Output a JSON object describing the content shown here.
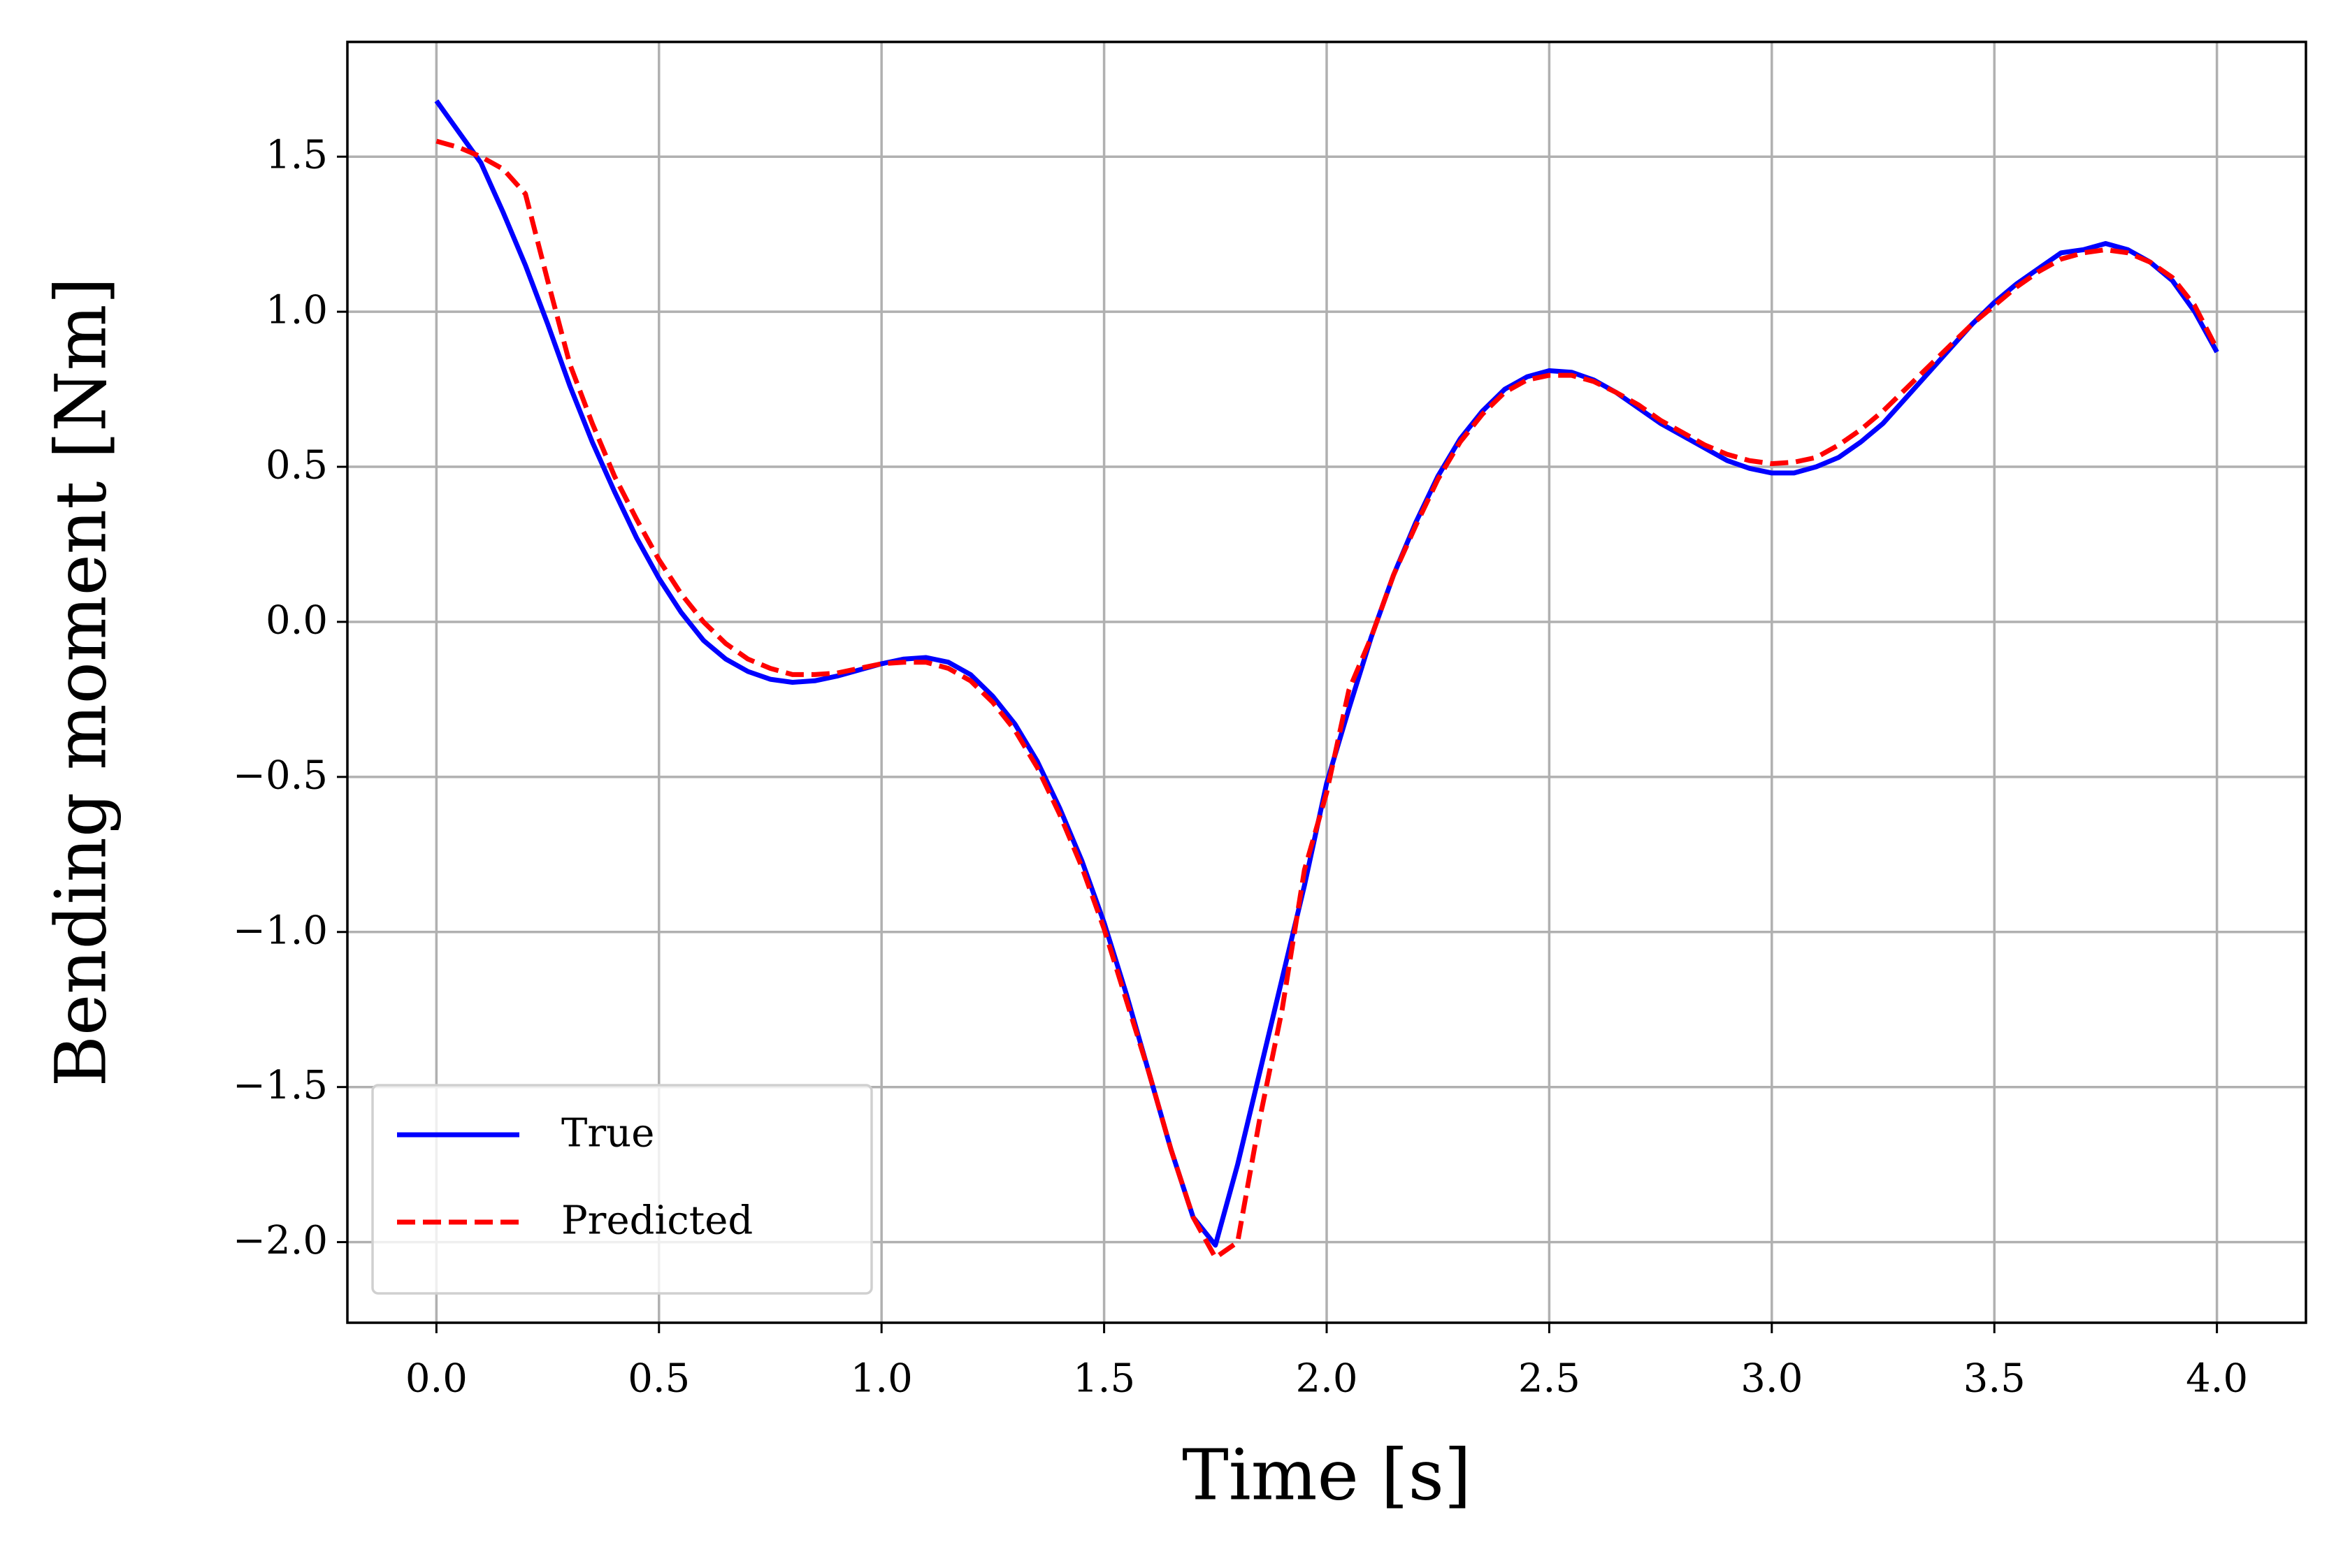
{
  "chart_data": {
    "type": "line",
    "xlabel": "Time [s]",
    "ylabel": "Bending moment [Nm]",
    "x": [
      0,
      0.05,
      0.1,
      0.15,
      0.2,
      0.25,
      0.3,
      0.35,
      0.4,
      0.45,
      0.5,
      0.55,
      0.6,
      0.65,
      0.7,
      0.75,
      0.8,
      0.85,
      0.9,
      0.95,
      1,
      1.05,
      1.1,
      1.15,
      1.2,
      1.25,
      1.3,
      1.35,
      1.4,
      1.45,
      1.5,
      1.55,
      1.6,
      1.65,
      1.7,
      1.75,
      1.8,
      1.85,
      1.9,
      1.95,
      2,
      2.05,
      2.1,
      2.15,
      2.2,
      2.25,
      2.3,
      2.35,
      2.4,
      2.45,
      2.5,
      2.55,
      2.6,
      2.65,
      2.7,
      2.75,
      2.8,
      2.85,
      2.9,
      2.95,
      3,
      3.05,
      3.1,
      3.15,
      3.2,
      3.25,
      3.3,
      3.35,
      3.4,
      3.45,
      3.5,
      3.55,
      3.6,
      3.65,
      3.7,
      3.75,
      3.8,
      3.85,
      3.9,
      3.95,
      4
    ],
    "series": [
      {
        "name": "True",
        "color": "#0000ff",
        "dash": false,
        "values": [
          1.68,
          1.58,
          1.48,
          1.32,
          1.15,
          0.96,
          0.76,
          0.58,
          0.42,
          0.27,
          0.14,
          0.03,
          -0.06,
          -0.12,
          -0.16,
          -0.185,
          -0.195,
          -0.19,
          -0.175,
          -0.155,
          -0.135,
          -0.12,
          -0.115,
          -0.13,
          -0.17,
          -0.24,
          -0.33,
          -0.45,
          -0.6,
          -0.77,
          -0.97,
          -1.2,
          -1.45,
          -1.7,
          -1.92,
          -2.01,
          -1.75,
          -1.45,
          -1.15,
          -0.85,
          -0.52,
          -0.28,
          -0.05,
          0.15,
          0.32,
          0.47,
          0.59,
          0.68,
          0.75,
          0.79,
          0.81,
          0.805,
          0.78,
          0.74,
          0.69,
          0.64,
          0.6,
          0.56,
          0.52,
          0.495,
          0.48,
          0.48,
          0.5,
          0.53,
          0.58,
          0.64,
          0.72,
          0.8,
          0.88,
          0.96,
          1.03,
          1.09,
          1.14,
          1.19,
          1.2,
          1.22,
          1.2,
          1.16,
          1.1,
          1.0,
          0.87
        ]
      },
      {
        "name": "Predicted",
        "color": "#ff0000",
        "dash": true,
        "values": [
          1.55,
          1.53,
          1.5,
          1.46,
          1.38,
          1.1,
          0.83,
          0.64,
          0.47,
          0.33,
          0.2,
          0.09,
          0.0,
          -0.07,
          -0.12,
          -0.15,
          -0.17,
          -0.17,
          -0.165,
          -0.15,
          -0.135,
          -0.13,
          -0.13,
          -0.15,
          -0.19,
          -0.26,
          -0.35,
          -0.47,
          -0.62,
          -0.79,
          -0.99,
          -1.22,
          -1.45,
          -1.7,
          -1.92,
          -2.05,
          -2.0,
          -1.6,
          -1.25,
          -0.8,
          -0.55,
          -0.22,
          -0.05,
          0.15,
          0.31,
          0.46,
          0.58,
          0.67,
          0.74,
          0.78,
          0.795,
          0.795,
          0.775,
          0.74,
          0.7,
          0.65,
          0.61,
          0.57,
          0.54,
          0.52,
          0.51,
          0.515,
          0.53,
          0.57,
          0.62,
          0.68,
          0.75,
          0.82,
          0.89,
          0.96,
          1.02,
          1.08,
          1.13,
          1.17,
          1.19,
          1.2,
          1.19,
          1.16,
          1.11,
          1.02,
          0.88
        ]
      }
    ],
    "xlim": [
      -0.2,
      4.2
    ],
    "ylim": [
      -2.26,
      1.87
    ],
    "xticks": [
      {
        "value": 0,
        "label": "0.0"
      },
      0.5,
      {
        "value": 1,
        "label": "1.0"
      },
      1.5,
      {
        "value": 2,
        "label": "2.0"
      },
      2.5,
      {
        "value": 3,
        "label": "3.0"
      },
      3.5,
      {
        "value": 4,
        "label": "4.0"
      }
    ],
    "yticks": [
      {
        "value": -2,
        "label": "−2.0"
      },
      {
        "value": -1.5,
        "label": "−1.5"
      },
      {
        "value": -1,
        "label": "−1.0"
      },
      {
        "value": -0.5,
        "label": "−0.5"
      },
      {
        "value": 0,
        "label": "0.0"
      },
      0.5,
      {
        "value": 1,
        "label": "1.0"
      },
      1.5
    ],
    "grid": true,
    "legend": "lower left"
  }
}
